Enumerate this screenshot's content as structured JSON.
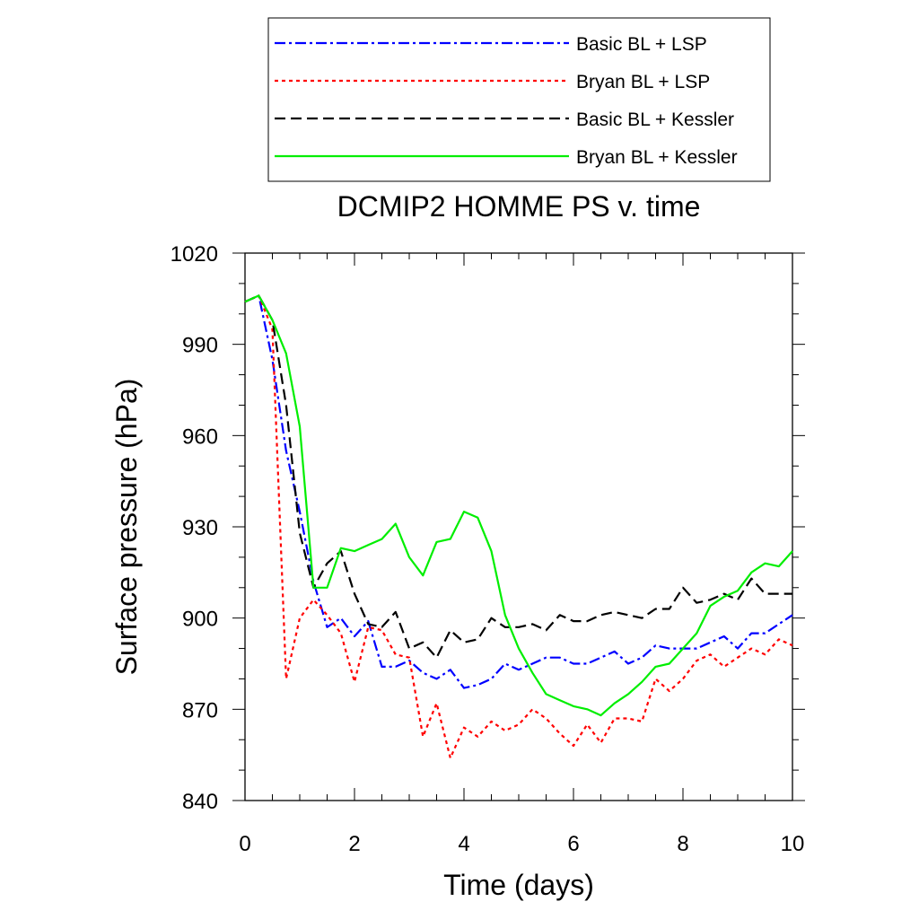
{
  "chart_data": {
    "type": "line",
    "title": "DCMIP2 HOMME PS v. time",
    "xlabel": "Time (days)",
    "ylabel": "Surface pressure (hPa)",
    "xlim": [
      0,
      10
    ],
    "ylim": [
      840,
      1020
    ],
    "xticks": [
      0,
      2,
      4,
      6,
      8,
      10
    ],
    "yticks": [
      840,
      870,
      900,
      930,
      960,
      990,
      1020
    ],
    "grid": false,
    "legend_position": "top-center",
    "x": [
      0,
      0.25,
      0.5,
      0.75,
      1.0,
      1.25,
      1.5,
      1.75,
      2.0,
      2.25,
      2.5,
      2.75,
      3.0,
      3.25,
      3.5,
      3.75,
      4.0,
      4.25,
      4.5,
      4.75,
      5.0,
      5.25,
      5.5,
      5.75,
      6.0,
      6.25,
      6.5,
      6.75,
      7.0,
      7.25,
      7.5,
      7.75,
      8.0,
      8.25,
      8.5,
      8.75,
      9.0,
      9.25,
      9.5,
      9.75,
      10.0
    ],
    "series": [
      {
        "name": "Basic BL + LSP",
        "color": "#0000ff",
        "dash": "dashdot",
        "values": [
          1004,
          1006,
          985,
          955,
          935,
          912,
          897,
          900,
          894,
          899,
          884,
          884,
          886,
          882,
          880,
          883,
          877,
          878,
          880,
          885,
          883,
          885,
          887,
          887,
          885,
          885,
          887,
          889,
          885,
          887,
          891,
          890,
          890,
          890,
          892,
          894,
          890,
          895,
          895,
          898,
          901
        ]
      },
      {
        "name": "Bryan BL + LSP",
        "color": "#ff0000",
        "dash": "dotted",
        "values": [
          1004,
          1006,
          995,
          880,
          900,
          906,
          901,
          895,
          879,
          897,
          896,
          888,
          887,
          861,
          872,
          854,
          864,
          861,
          866,
          863,
          865,
          870,
          867,
          862,
          858,
          865,
          859,
          867,
          867,
          866,
          880,
          876,
          880,
          886,
          888,
          884,
          887,
          890,
          888,
          893,
          891
        ]
      },
      {
        "name": "Basic BL + Kessler",
        "color": "#000000",
        "dash": "dashed",
        "values": [
          1004,
          1006,
          998,
          970,
          928,
          910,
          918,
          922,
          908,
          898,
          897,
          902,
          890,
          892,
          887,
          896,
          892,
          893,
          900,
          897,
          897,
          898,
          896,
          901,
          899,
          899,
          901,
          902,
          901,
          900,
          903,
          903,
          910,
          905,
          906,
          908,
          906,
          913,
          908,
          908,
          908
        ]
      },
      {
        "name": "Bryan BL + Kessler",
        "color": "#00ee00",
        "dash": "solid",
        "values": [
          1004,
          1006,
          998,
          987,
          963,
          910,
          910,
          923,
          922,
          924,
          926,
          931,
          920,
          914,
          925,
          926,
          935,
          933,
          922,
          901,
          890,
          882,
          875,
          873,
          871,
          870,
          868,
          872,
          875,
          879,
          884,
          885,
          890,
          895,
          904,
          907,
          909,
          915,
          918,
          917,
          922
        ]
      }
    ]
  }
}
